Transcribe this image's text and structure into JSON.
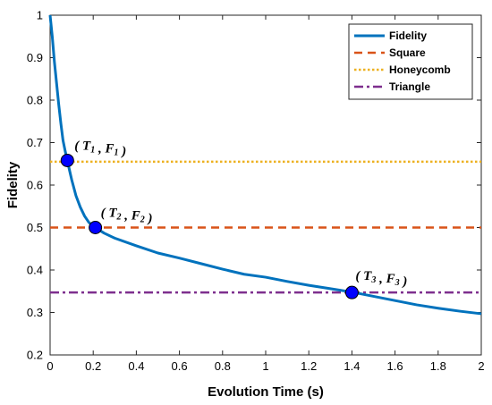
{
  "chart_data": {
    "type": "line",
    "xlabel": "Evolution Time (s)",
    "ylabel": "Fidelity",
    "xlim": [
      0,
      2
    ],
    "ylim": [
      0.2,
      1
    ],
    "xticks": [
      "0",
      "0.2",
      "0.4",
      "0.6",
      "0.8",
      "1",
      "1.2",
      "1.4",
      "1.6",
      "1.8",
      "2"
    ],
    "yticks": [
      "0.2",
      "0.3",
      "0.4",
      "0.5",
      "0.6",
      "0.7",
      "0.8",
      "0.9",
      "1"
    ],
    "grid": false,
    "legend_position": "top-right",
    "series": [
      {
        "name": "Fidelity",
        "style": "solid",
        "color": "#0072BD",
        "x": [
          0,
          0.01,
          0.02,
          0.03,
          0.04,
          0.05,
          0.06,
          0.07,
          0.08,
          0.09,
          0.1,
          0.12,
          0.14,
          0.16,
          0.18,
          0.21,
          0.25,
          0.3,
          0.4,
          0.5,
          0.6,
          0.7,
          0.8,
          0.9,
          1.0,
          1.1,
          1.2,
          1.3,
          1.4,
          1.5,
          1.6,
          1.7,
          1.8,
          1.9,
          2.0
        ],
        "y": [
          1.0,
          0.95,
          0.89,
          0.84,
          0.79,
          0.745,
          0.705,
          0.68,
          0.658,
          0.635,
          0.613,
          0.575,
          0.548,
          0.527,
          0.512,
          0.5,
          0.487,
          0.475,
          0.457,
          0.44,
          0.428,
          0.415,
          0.402,
          0.39,
          0.383,
          0.373,
          0.364,
          0.356,
          0.348,
          0.338,
          0.328,
          0.318,
          0.31,
          0.303,
          0.297
        ]
      },
      {
        "name": "Square",
        "style": "dashed",
        "color": "#D95319",
        "y": 0.5
      },
      {
        "name": "Honeycomb",
        "style": "dotted",
        "color": "#EDB120",
        "y": 0.655
      },
      {
        "name": "Triangle",
        "style": "dashdot",
        "color": "#7E2F8E",
        "y": 0.347
      }
    ],
    "points": [
      {
        "t": "T",
        "t_sub": "1",
        "f": "F",
        "f_sub": "1",
        "x": 0.08,
        "y": 0.658
      },
      {
        "t": "T",
        "t_sub": "2",
        "f": "F",
        "f_sub": "2",
        "x": 0.21,
        "y": 0.5
      },
      {
        "t": "T",
        "t_sub": "3",
        "f": "F",
        "f_sub": "3",
        "x": 1.4,
        "y": 0.347
      }
    ],
    "marker_color": "#0000FF"
  }
}
